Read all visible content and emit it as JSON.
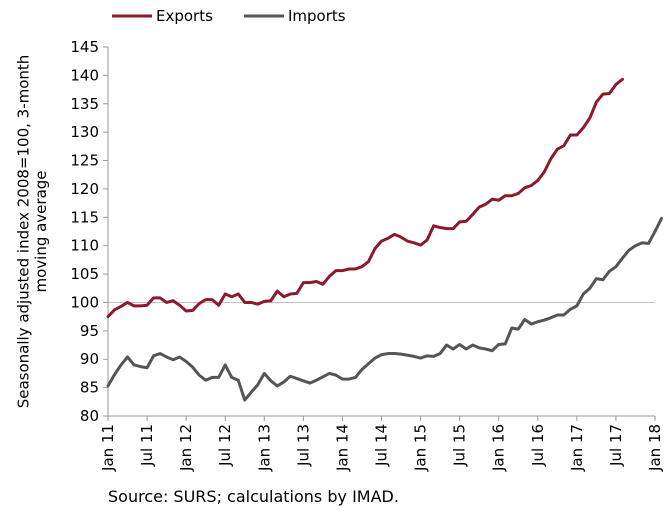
{
  "chart_data": {
    "type": "line",
    "title": "",
    "xlabel": "",
    "ylabel_lines": [
      "Seasonally adjusted index 2008=100, 3-month",
      "moving average"
    ],
    "ylim": [
      80,
      145
    ],
    "y_ticks": [
      80,
      85,
      90,
      95,
      100,
      105,
      110,
      115,
      120,
      125,
      130,
      135,
      140,
      145
    ],
    "x_ticks": [
      "Jan 11",
      "Jul 11",
      "Jan 12",
      "Jul 12",
      "Jan 13",
      "Jul 13",
      "Jan 14",
      "Jul 14",
      "Jan 15",
      "Jul 15",
      "Jan 16",
      "Jul 16",
      "Jan 17",
      "Jul 17",
      "Jan 18"
    ],
    "x_start": "Jan 11",
    "x_end": "Jan 18",
    "gridlines": "none",
    "reference_line": 100,
    "legend": "top-left",
    "series": [
      {
        "name": "Exports",
        "color": "#8b1a2b",
        "values": [
          97.5,
          98.7,
          99.3,
          100.0,
          99.4,
          99.4,
          99.5,
          100.8,
          100.8,
          100.0,
          100.3,
          99.5,
          98.5,
          98.6,
          99.8,
          100.5,
          100.5,
          99.5,
          101.5,
          101.0,
          101.5,
          100.0,
          100.0,
          99.7,
          100.2,
          100.3,
          102.0,
          101.0,
          101.5,
          101.6,
          103.5,
          103.5,
          103.7,
          103.2,
          104.6,
          105.6,
          105.6,
          105.9,
          105.9,
          106.3,
          107.2,
          109.5,
          110.8,
          111.3,
          112.0,
          111.5,
          110.8,
          110.5,
          110.1,
          111.0,
          113.5,
          113.2,
          113.0,
          113.0,
          114.2,
          114.3,
          115.5,
          116.8,
          117.3,
          118.2,
          118.0,
          118.8,
          118.8,
          119.2,
          120.2,
          120.6,
          121.5,
          123.0,
          125.3,
          127.0,
          127.6,
          129.5,
          129.5,
          130.8,
          132.5,
          135.3,
          136.7,
          136.8,
          138.4,
          139.3
        ]
      },
      {
        "name": "Imports",
        "color": "#555555",
        "values": [
          85.3,
          87.3,
          89.0,
          90.4,
          89.0,
          88.7,
          88.5,
          90.6,
          91.0,
          90.4,
          89.9,
          90.4,
          89.6,
          88.6,
          87.2,
          86.3,
          86.8,
          86.8,
          89.0,
          86.8,
          86.3,
          82.8,
          84.2,
          85.5,
          87.5,
          86.2,
          85.3,
          86.0,
          87.0,
          86.6,
          86.2,
          85.8,
          86.3,
          86.9,
          87.5,
          87.2,
          86.5,
          86.5,
          86.8,
          88.2,
          89.2,
          90.2,
          90.8,
          91.0,
          91.0,
          90.9,
          90.7,
          90.5,
          90.2,
          90.6,
          90.5,
          91.0,
          92.5,
          91.8,
          92.6,
          91.8,
          92.5,
          92.0,
          91.8,
          91.5,
          92.6,
          92.7,
          95.5,
          95.3,
          97.0,
          96.2,
          96.6,
          96.9,
          97.3,
          97.8,
          97.8,
          98.8,
          99.4,
          101.5,
          102.5,
          104.2,
          104.0,
          105.5,
          106.3,
          107.8,
          109.2,
          110.0,
          110.5,
          110.4,
          112.5,
          114.8
        ]
      }
    ]
  },
  "source": "Source: SURS; calculations by IMAD."
}
